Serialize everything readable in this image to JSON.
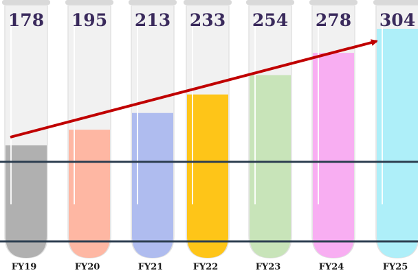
{
  "chart_data": {
    "type": "bar",
    "categories": [
      "FY19",
      "FY20",
      "FY21",
      "FY22",
      "FY23",
      "FY24",
      "FY25"
    ],
    "values": [
      178,
      195,
      213,
      233,
      254,
      278,
      304
    ],
    "colors": [
      "#a9a9a9",
      "#ffb09a",
      "#a7b6ee",
      "#ffc000",
      "#c3e2b2",
      "#f8a6f2",
      "#a6eef9"
    ]
  }
}
